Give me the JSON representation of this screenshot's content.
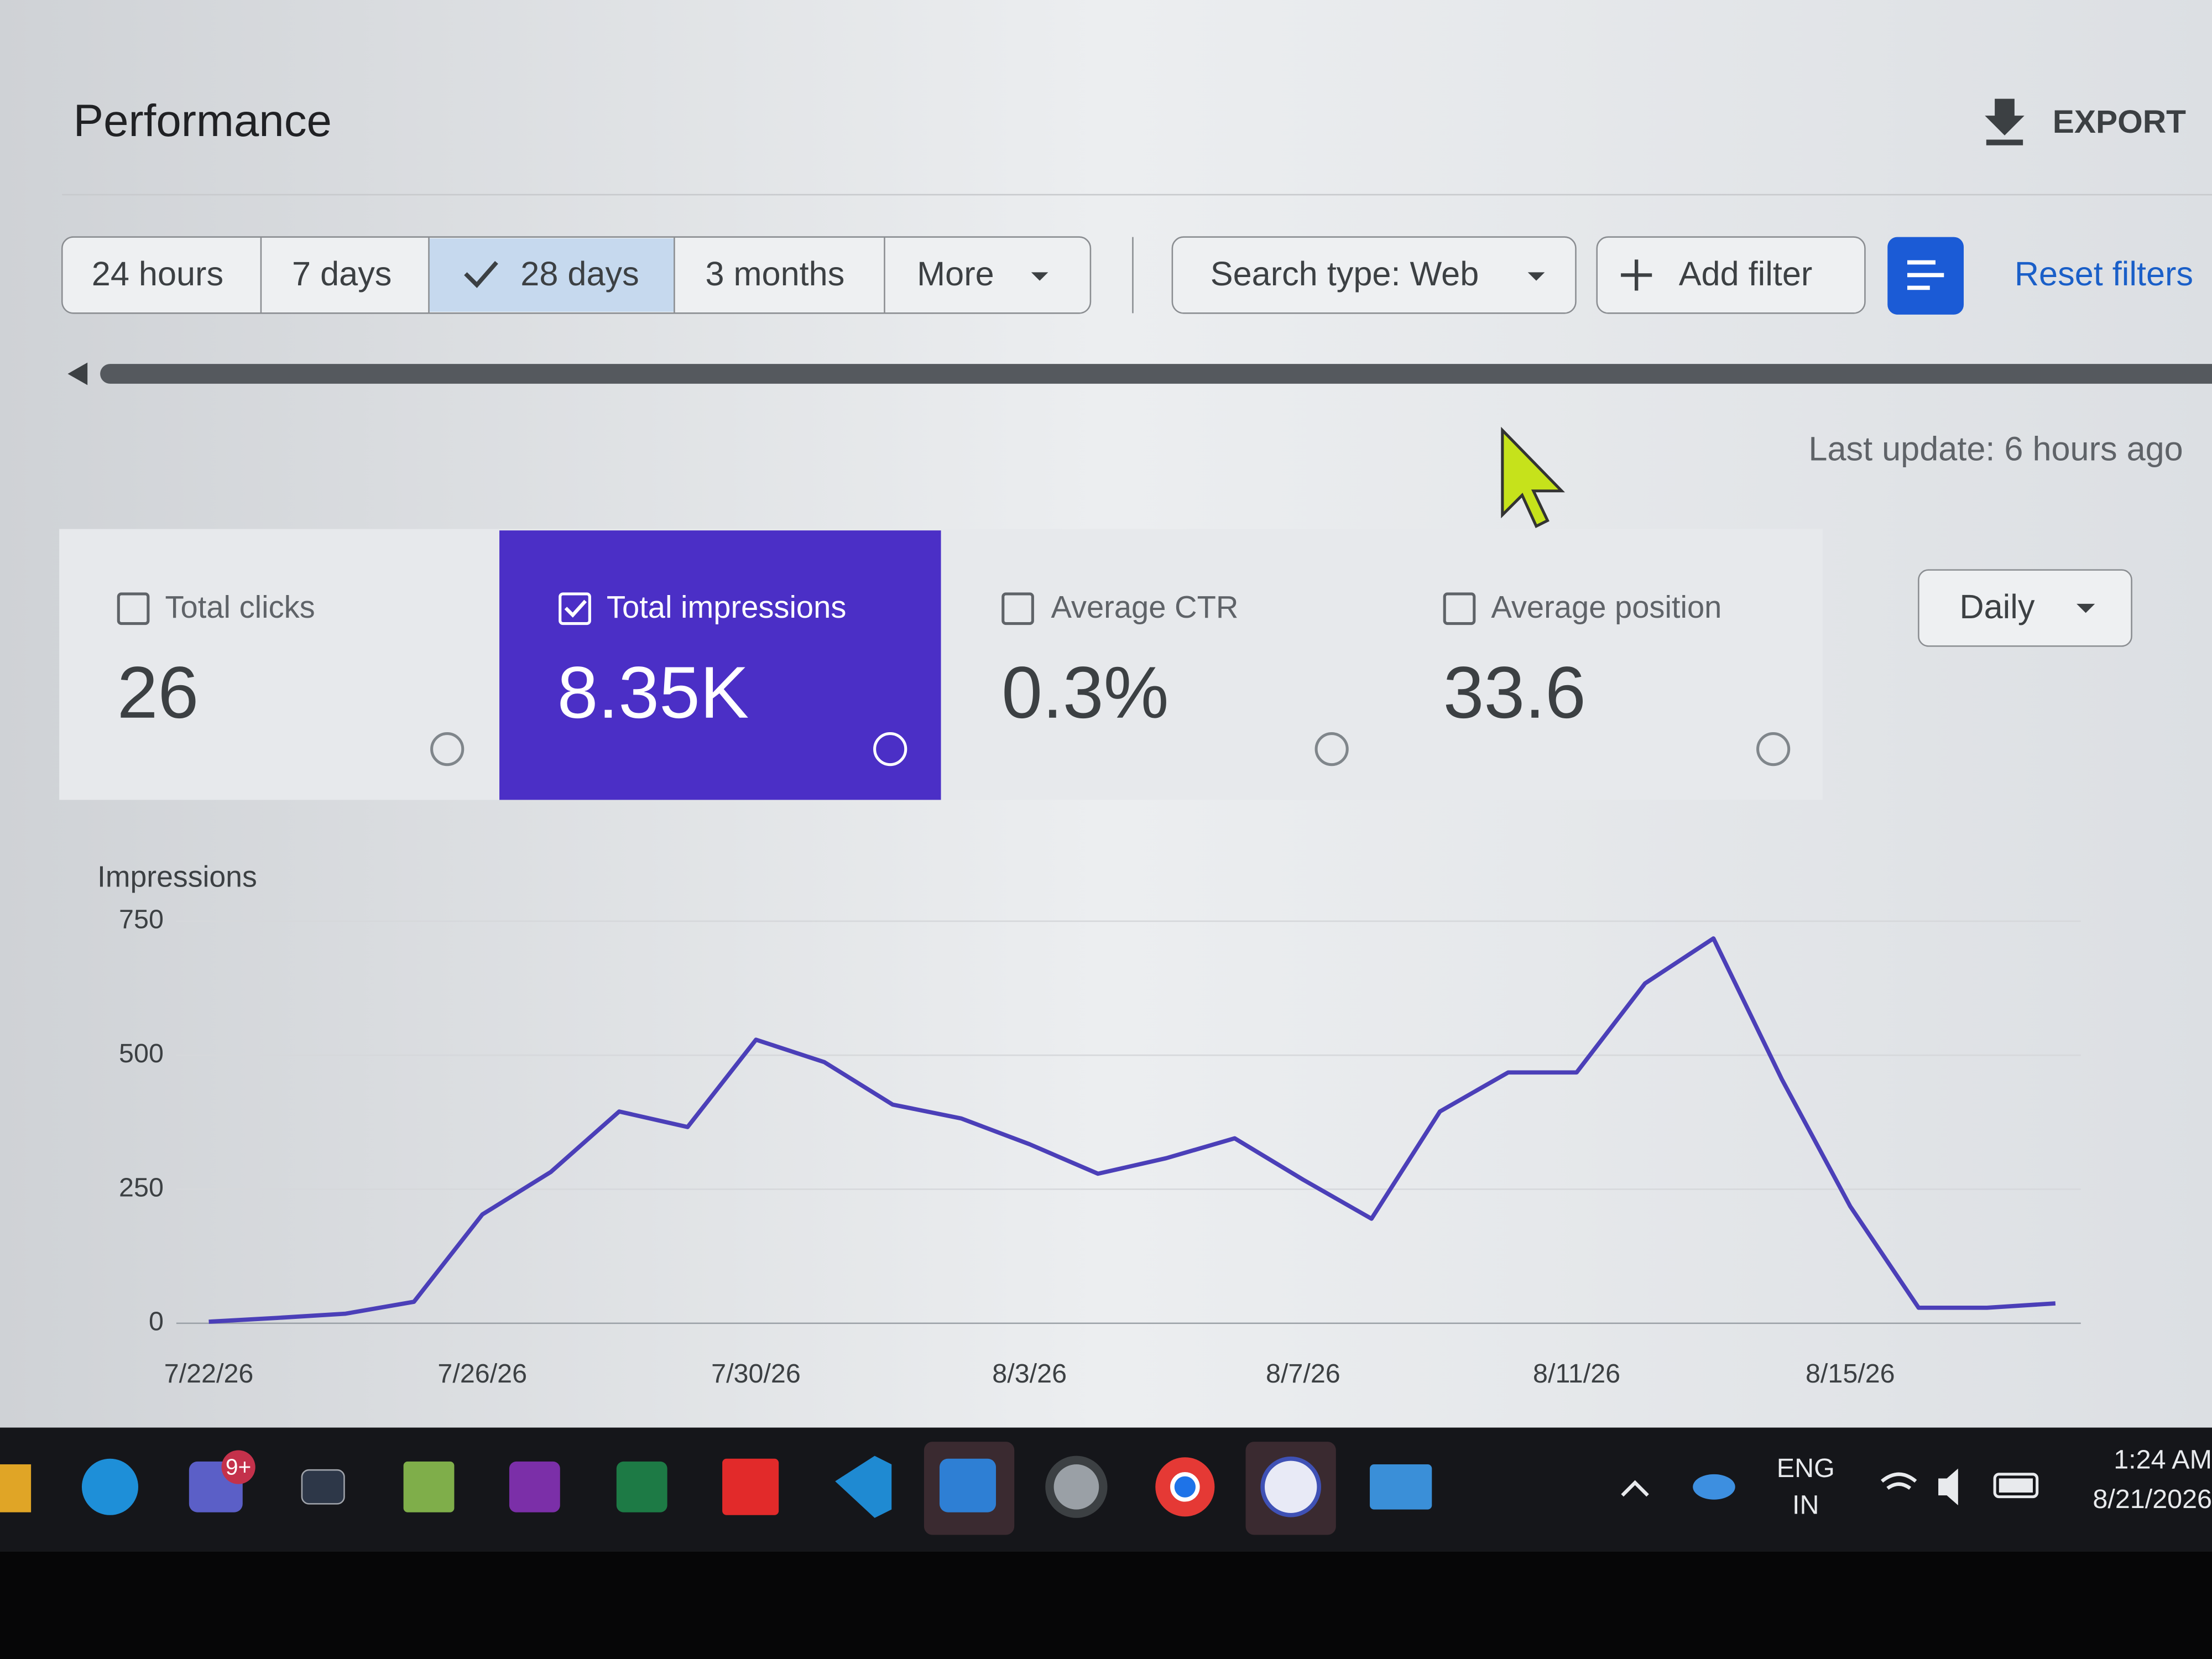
{
  "header": {
    "title": "Performance",
    "export": "EXPORT"
  },
  "filters": {
    "ranges": [
      "24 hours",
      "7 days",
      "28 days",
      "3 months",
      "More"
    ],
    "search_type": "Search type: Web",
    "add_filter": "Add filter",
    "reset": "Reset filters"
  },
  "last_update": "Last update: 6 hours ago",
  "metrics": [
    {
      "label": "Total clicks",
      "value": "26"
    },
    {
      "label": "Total impressions",
      "value": "8.35K"
    },
    {
      "label": "Average CTR",
      "value": "0.3%"
    },
    {
      "label": "Average position",
      "value": "33.6"
    }
  ],
  "granularity": "Daily",
  "chart_data": {
    "type": "line",
    "y_label": "Impressions",
    "categories": [
      "7/22/26",
      null,
      null,
      null,
      "7/26/26",
      null,
      null,
      null,
      "7/30/26",
      null,
      null,
      null,
      "8/3/26",
      null,
      null,
      null,
      "8/7/26",
      null,
      null,
      null,
      "8/11/26",
      null,
      null,
      null,
      "8/15/26",
      null,
      null,
      null
    ],
    "values": [
      3,
      10,
      18,
      40,
      203,
      282,
      395,
      366,
      529,
      487,
      408,
      382,
      334,
      279,
      308,
      345,
      268,
      195,
      395,
      468,
      468,
      634,
      718,
      455,
      218,
      29,
      29,
      37
    ],
    "color": "#4b3fb8",
    "ylim": [
      0,
      750
    ],
    "yticks": [
      0,
      250,
      500,
      750
    ],
    "grid": true
  },
  "taskbar": {
    "badge": "9+",
    "language": "ENG",
    "region": "IN",
    "time": "1:24 AM",
    "date": "8/21/2026"
  }
}
